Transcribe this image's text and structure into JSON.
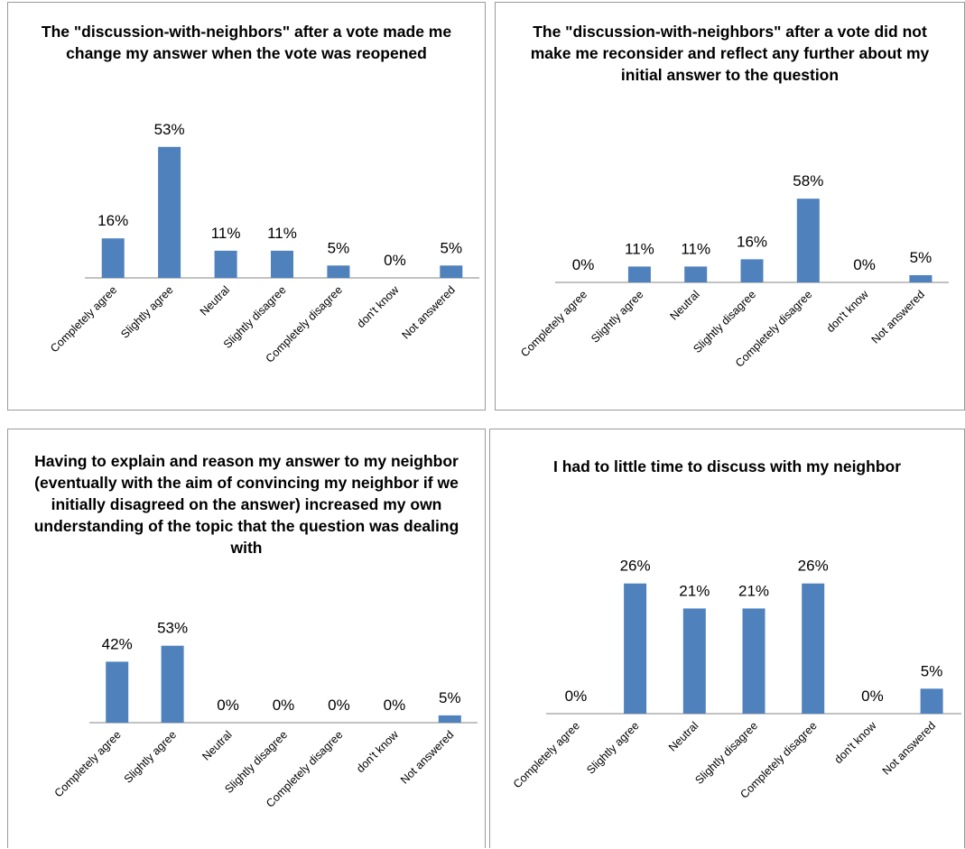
{
  "chart_data": [
    {
      "type": "bar",
      "title": "The \"discussion-with-neighbors\" after a vote made me change my answer when the vote was reopened",
      "categories": [
        "Completely agree",
        "Slightly agree",
        "Neutral",
        "Slightly disagree",
        "Completely disagree",
        "don't know",
        "Not answered"
      ],
      "values": [
        16,
        53,
        11,
        11,
        5,
        0,
        5
      ],
      "value_labels": [
        "16%",
        "53%",
        "11%",
        "11%",
        "5%",
        "0%",
        "5%"
      ],
      "unit": "%",
      "bar_color": "#4f81bd",
      "grid": false,
      "legend": "none"
    },
    {
      "type": "bar",
      "title": "The \"discussion-with-neighbors\" after a vote did not make me reconsider and reflect any further about my initial answer to the question",
      "categories": [
        "Completely agree",
        "Slightly agree",
        "Neutral",
        "Slightly disagree",
        "Completely disagree",
        "don't know",
        "Not answered"
      ],
      "values": [
        0,
        11,
        11,
        16,
        58,
        0,
        5
      ],
      "value_labels": [
        "0%",
        "11%",
        "11%",
        "16%",
        "58%",
        "0%",
        "5%"
      ],
      "unit": "%",
      "bar_color": "#4f81bd",
      "grid": false,
      "legend": "none"
    },
    {
      "type": "bar",
      "title": "Having to explain and reason my answer to my neighbor (eventually with the aim of convincing my neighbor if we initially disagreed on the answer) increased my own understanding of the topic that the question was dealing with",
      "categories": [
        "Completely agree",
        "Slightly agree",
        "Neutral",
        "Slightly disagree",
        "Completely disagree",
        "don't know",
        "Not answered"
      ],
      "values": [
        42,
        53,
        0,
        0,
        0,
        0,
        5
      ],
      "value_labels": [
        "42%",
        "53%",
        "0%",
        "0%",
        "0%",
        "0%",
        "5%"
      ],
      "unit": "%",
      "bar_color": "#4f81bd",
      "grid": false,
      "legend": "none"
    },
    {
      "type": "bar",
      "title": "I had to little time to discuss with my neighbor",
      "categories": [
        "Completely agree",
        "Slightly agree",
        "Neutral",
        "Slightly disagree",
        "Completely disagree",
        "don't know",
        "Not answered"
      ],
      "values": [
        0,
        26,
        21,
        21,
        26,
        0,
        5
      ],
      "value_labels": [
        "0%",
        "26%",
        "21%",
        "21%",
        "26%",
        "0%",
        "5%"
      ],
      "unit": "%",
      "bar_color": "#4f81bd",
      "grid": false,
      "legend": "none"
    }
  ]
}
